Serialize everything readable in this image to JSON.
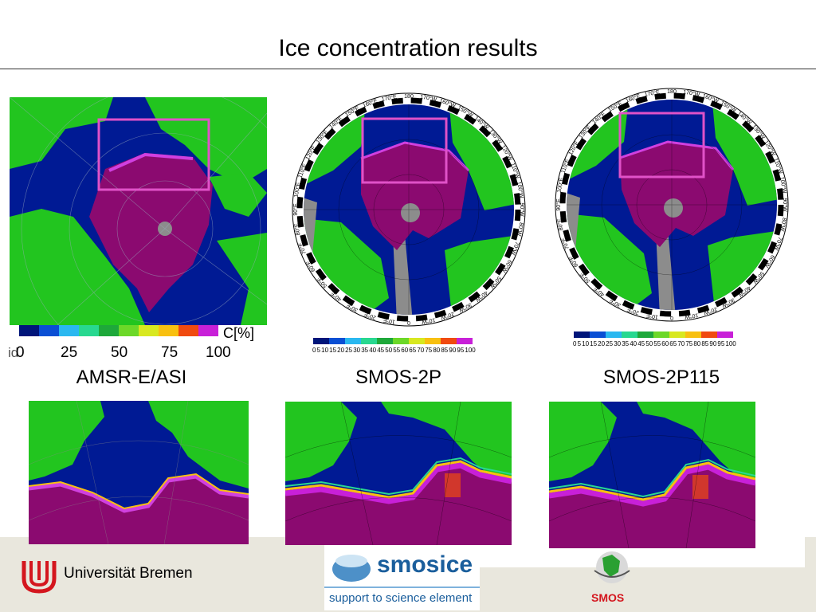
{
  "slide": {
    "title": "Ice concentration results"
  },
  "panels": {
    "captions": [
      "AMSR-E/ASI",
      "SMOS-2P",
      "SMOS-2P115"
    ]
  },
  "amsr_colorbar": {
    "unit_label": "C[%]",
    "ticks": [
      "0",
      "25",
      "50",
      "75",
      "100"
    ],
    "edge_fragment": "id"
  },
  "smos_colorbar": {
    "ticks": [
      "0",
      "5",
      "10",
      "15",
      "20",
      "25",
      "30",
      "35",
      "40",
      "45",
      "50",
      "55",
      "60",
      "65",
      "70",
      "75",
      "80",
      "85",
      "90",
      "95",
      "100"
    ]
  },
  "polar_labels": {
    "top": [
      "170°W",
      "160°W",
      "150°W",
      "140°W",
      "130°W",
      "120°W",
      "110°W",
      "100°W",
      "90°W",
      "80°W",
      "70°W",
      "60°W",
      "50°W",
      "40°W",
      "30°W",
      "20°W",
      "10°W",
      "0",
      "10°E",
      "20°E",
      "30°E",
      "40°E",
      "50°E",
      "60°E",
      "70°E",
      "80°E",
      "90°E",
      "100°E",
      "110°E",
      "120°E",
      "130°E",
      "140°E",
      "150°E",
      "160°E",
      "170°E",
      "180"
    ]
  },
  "logos": {
    "university": "Universität Bremen",
    "smosice_name": "smosice",
    "smosice_tagline": "support to science element",
    "smos": "SMOS"
  },
  "colors": {
    "land_green": "#22c51f",
    "water_blue": "#001a94",
    "ice_purple": "#8b0a70",
    "missing_gray": "#8c8c8c",
    "magenta_box": "#e052c8"
  }
}
